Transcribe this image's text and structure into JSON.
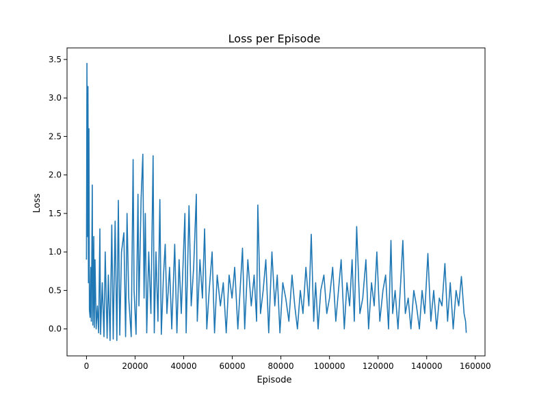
{
  "chart_data": {
    "type": "line",
    "title": "Loss per Episode",
    "xlabel": "Episode",
    "ylabel": "Loss",
    "xlim": [
      -8000,
      164000
    ],
    "ylim": [
      -0.35,
      3.65
    ],
    "xticks": [
      0,
      20000,
      40000,
      60000,
      80000,
      100000,
      120000,
      140000,
      160000
    ],
    "yticks": [
      0.0,
      0.5,
      1.0,
      1.5,
      2.0,
      2.5,
      3.0,
      3.5
    ],
    "grid": false,
    "line_color": "#1f77b4",
    "series": [
      {
        "name": "",
        "x": [
          0,
          200,
          400,
          600,
          800,
          1000,
          1200,
          1500,
          1800,
          2000,
          2400,
          2600,
          3000,
          3200,
          3500,
          4000,
          4500,
          5000,
          5500,
          5800,
          6500,
          7200,
          7700,
          8500,
          9000,
          9700,
          10400,
          11000,
          11800,
          12500,
          13100,
          13700,
          14400,
          15400,
          16100,
          16700,
          17400,
          18400,
          19200,
          19600,
          20400,
          21200,
          21600,
          22500,
          23200,
          23700,
          24200,
          24800,
          25600,
          26500,
          27400,
          27900,
          28600,
          29400,
          30200,
          30800,
          31700,
          32400,
          33100,
          34200,
          35100,
          36300,
          37200,
          38100,
          39000,
          40500,
          41000,
          42200,
          43100,
          44100,
          45200,
          45600,
          46700,
          47700,
          48600,
          49500,
          50500,
          51700,
          52700,
          53800,
          55100,
          56300,
          57500,
          58700,
          59900,
          61000,
          62300,
          63400,
          64200,
          65100,
          66400,
          67800,
          69000,
          70000,
          70500,
          71600,
          72700,
          73800,
          75000,
          76300,
          77500,
          78500,
          79600,
          80800,
          82000,
          83300,
          84600,
          85700,
          86800,
          88000,
          89100,
          90300,
          91500,
          92500,
          93500,
          94300,
          95300,
          96400,
          97700,
          98900,
          100000,
          101300,
          102600,
          103700,
          104800,
          106100,
          107200,
          108300,
          109300,
          110200,
          111200,
          112500,
          113700,
          115000,
          116100,
          117300,
          118400,
          119500,
          120700,
          122000,
          123100,
          124300,
          125300,
          126000,
          127000,
          128200,
          129300,
          130200,
          131200,
          132400,
          133500,
          134700,
          135800,
          137000,
          138100,
          139200,
          140500,
          141700,
          142900,
          144100,
          145200,
          146300,
          147500,
          148600,
          149700,
          150900,
          152100,
          153200,
          154300,
          155400,
          156000,
          156300
        ],
        "y": [
          0.9,
          3.45,
          1.2,
          3.15,
          0.6,
          2.6,
          0.25,
          0.15,
          0.8,
          0.1,
          1.87,
          0.05,
          1.2,
          0.02,
          0.9,
          0.0,
          0.3,
          -0.05,
          1.3,
          -0.07,
          0.6,
          -0.1,
          1.0,
          -0.12,
          0.7,
          -0.15,
          1.35,
          -0.13,
          1.4,
          -0.15,
          1.67,
          -0.08,
          1.0,
          1.25,
          -0.1,
          1.5,
          0.4,
          -0.1,
          2.2,
          0.5,
          -0.07,
          1.75,
          0.3,
          1.7,
          2.27,
          0.4,
          1.5,
          -0.05,
          1.0,
          0.2,
          2.25,
          -0.05,
          1.0,
          0.1,
          1.68,
          -0.07,
          0.7,
          1.1,
          0.2,
          0.8,
          0.0,
          1.1,
          -0.05,
          0.9,
          0.2,
          1.5,
          -0.05,
          1.6,
          0.3,
          0.8,
          1.75,
          0.1,
          0.9,
          0.4,
          1.3,
          0.0,
          0.5,
          1.0,
          -0.05,
          0.7,
          0.3,
          0.6,
          -0.05,
          0.7,
          0.4,
          0.8,
          0.0,
          0.6,
          1.05,
          0.0,
          0.9,
          0.3,
          0.7,
          0.1,
          1.61,
          0.2,
          0.5,
          0.9,
          -0.05,
          1.0,
          0.3,
          0.7,
          -0.05,
          0.6,
          0.4,
          0.1,
          0.7,
          0.3,
          0.0,
          0.5,
          0.2,
          0.8,
          0.3,
          1.23,
          0.1,
          0.6,
          0.0,
          0.5,
          0.7,
          0.2,
          0.4,
          0.8,
          0.1,
          0.5,
          0.9,
          0.0,
          0.6,
          0.3,
          0.9,
          0.1,
          1.33,
          0.2,
          0.4,
          0.9,
          0.0,
          0.6,
          0.3,
          1.0,
          0.1,
          0.5,
          0.7,
          0.0,
          1.15,
          0.2,
          0.5,
          0.0,
          0.6,
          1.15,
          0.2,
          0.4,
          0.0,
          0.5,
          0.3,
          0.0,
          0.5,
          0.2,
          0.98,
          0.1,
          0.5,
          0.0,
          0.4,
          0.3,
          0.85,
          0.1,
          0.6,
          0.0,
          0.5,
          0.3,
          0.68,
          0.2,
          0.1,
          -0.05
        ]
      }
    ]
  }
}
